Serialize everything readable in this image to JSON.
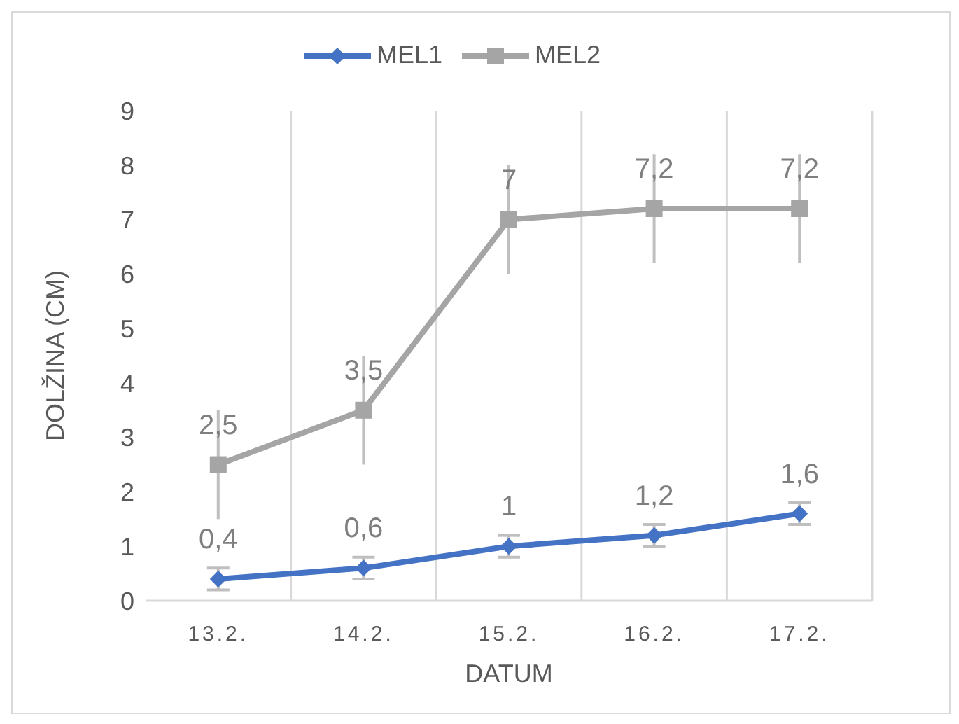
{
  "chart_data": {
    "type": "line",
    "xlabel": "DATUM",
    "ylabel": "DOLŽINA (CM)",
    "categories": [
      "13.2.",
      "14.2.",
      "15.2.",
      "16.2.",
      "17.2."
    ],
    "series": [
      {
        "name": "MEL1",
        "color": "#4472c4",
        "marker": "diamond",
        "values": [
          0.4,
          0.6,
          1,
          1.2,
          1.6
        ],
        "value_labels": [
          "0,4",
          "0,6",
          "1",
          "1,2",
          "1,6"
        ],
        "errors": [
          0.2,
          0.2,
          0.2,
          0.2,
          0.2
        ]
      },
      {
        "name": "MEL2",
        "color": "#a5a5a5",
        "marker": "square",
        "values": [
          2.5,
          3.5,
          7,
          7.2,
          7.2
        ],
        "value_labels": [
          "2,5",
          "3,5",
          "7",
          "7,2",
          "7,2"
        ],
        "errors": [
          1,
          1,
          1,
          1,
          1
        ]
      }
    ],
    "ylim": [
      0,
      9
    ],
    "yticks": [
      0,
      1,
      2,
      3,
      4,
      5,
      6,
      7,
      8,
      9
    ],
    "grid": "x",
    "legend": "top"
  }
}
